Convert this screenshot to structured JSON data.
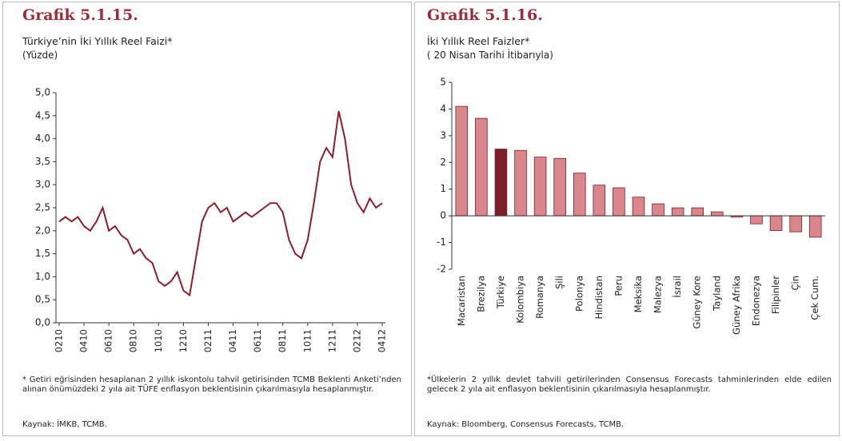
{
  "chart_data": [
    {
      "type": "line",
      "title": "Grafik 5.1.15.",
      "subtitle": "Türkiye’nin İki Yıllık Reel Faizi*",
      "unit_label": "(Yüzde)",
      "note": "* Getiri eğrisinden hesaplanan 2 yıllık iskontolu tahvil getirisinden TCMB Beklenti Anketi’nden alınan önümüzdeki 2 yıla ait TÜFE enflasyon beklentisinin çıkarılmasıyla hesaplanmıştır.",
      "source": "Kaynak: İMKB, TCMB.",
      "color": "#8b1e2d",
      "categories": [
        "0210",
        null,
        null,
        null,
        "0410",
        null,
        null,
        null,
        "0610",
        null,
        null,
        null,
        "0810",
        null,
        null,
        null,
        "1010",
        null,
        null,
        null,
        "1210",
        null,
        null,
        null,
        "0211",
        null,
        null,
        null,
        "0411",
        null,
        null,
        null,
        "0611",
        null,
        null,
        null,
        "0811",
        null,
        null,
        null,
        "1011",
        null,
        null,
        null,
        "1211",
        null,
        null,
        null,
        "0212",
        null,
        null,
        null,
        "0412"
      ],
      "values": [
        2.2,
        2.3,
        2.2,
        2.3,
        2.1,
        2.0,
        2.2,
        2.5,
        2.0,
        2.1,
        1.9,
        1.8,
        1.5,
        1.6,
        1.4,
        1.3,
        0.9,
        0.8,
        0.9,
        1.1,
        0.7,
        0.6,
        1.4,
        2.2,
        2.5,
        2.6,
        2.4,
        2.5,
        2.2,
        2.3,
        2.4,
        2.3,
        2.4,
        2.5,
        2.6,
        2.6,
        2.4,
        1.8,
        1.5,
        1.4,
        1.8,
        2.6,
        3.5,
        3.8,
        3.6,
        4.6,
        4.0,
        3.0,
        2.6,
        2.4,
        2.7,
        2.5,
        2.6
      ],
      "ylim": [
        0,
        5
      ],
      "yticks": [
        {
          "value": 0,
          "label": "0,0"
        },
        {
          "value": 0.5,
          "label": "0,5"
        },
        {
          "value": 1,
          "label": "1,0"
        },
        {
          "value": 1.5,
          "label": "1,5"
        },
        {
          "value": 2,
          "label": "2,0"
        },
        {
          "value": 2.5,
          "label": "2,5"
        },
        {
          "value": 3,
          "label": "3,0"
        },
        {
          "value": 3.5,
          "label": "3,5"
        },
        {
          "value": 4,
          "label": "4,0"
        },
        {
          "value": 4.5,
          "label": "4,5"
        },
        {
          "value": 5,
          "label": "5,0"
        }
      ],
      "grid": false
    },
    {
      "type": "bar",
      "title": "Grafik 5.1.16.",
      "subtitle": "İki Yıllık Reel Faizler*",
      "unit_label": "( 20 Nisan Tarihi İtibarıyla)",
      "note": "*Ülkelerin 2 yıllık devlet tahvili getirilerinden Consensus Forecasts tahminlerinden elde edilen gelecek 2 yıla ait enflasyon beklentisinin çıkarılmasıyla hesaplanmıştır.",
      "source": "Kaynak: Bloomberg, Consensus Forecasts, TCMB.",
      "categories": [
        "Macaristan",
        "Brezilya",
        "Türkiye",
        "Kolombiya",
        "Romanya",
        "Şili",
        "Polonya",
        "Hindistan",
        "Peru",
        "Meksika",
        "Malezya",
        "İsrail",
        "Güney Kore",
        "Tayland",
        "Güney Afrika",
        "Endonezya",
        "Filipinler",
        "Çin",
        "Çek Cum."
      ],
      "values": [
        4.1,
        3.65,
        2.5,
        2.45,
        2.2,
        2.15,
        1.6,
        1.15,
        1.05,
        0.7,
        0.45,
        0.3,
        0.3,
        0.15,
        -0.05,
        -0.3,
        -0.55,
        -0.6,
        -0.8
      ],
      "colors": [
        "#d9868c",
        "#d9868c",
        "#7b1f2b",
        "#d9868c",
        "#d9868c",
        "#d9868c",
        "#d9868c",
        "#d9868c",
        "#d9868c",
        "#d9868c",
        "#d9868c",
        "#d9868c",
        "#d9868c",
        "#d9868c",
        "#d9868c",
        "#d9868c",
        "#d9868c",
        "#d9868c",
        "#d9868c"
      ],
      "edgecolor": "#7b1f2b",
      "ylim": [
        -2,
        5
      ],
      "yticks": [
        -2,
        -1,
        0,
        1,
        2,
        3,
        4,
        5
      ],
      "grid": false
    }
  ]
}
